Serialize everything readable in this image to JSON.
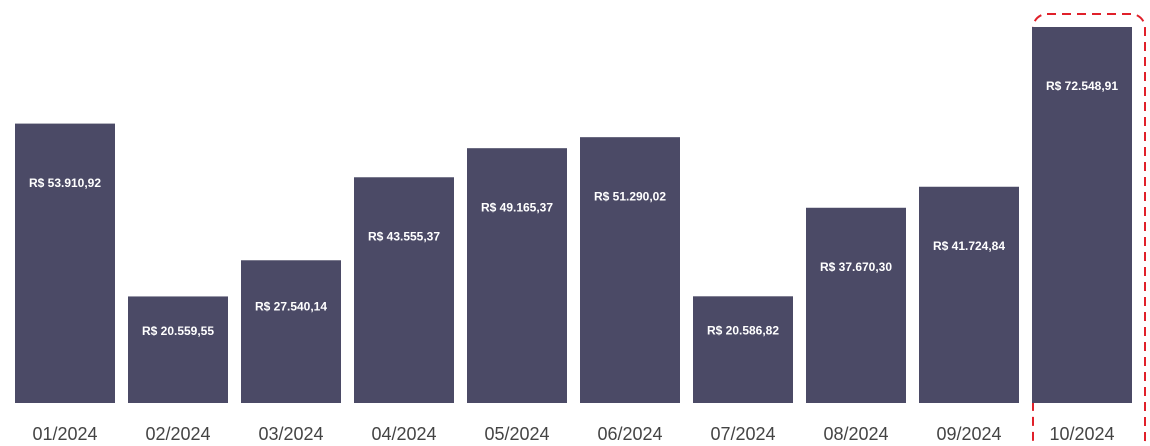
{
  "chart_data": {
    "type": "bar",
    "categories": [
      "01/2024",
      "02/2024",
      "03/2024",
      "04/2024",
      "05/2024",
      "06/2024",
      "07/2024",
      "08/2024",
      "09/2024",
      "10/2024"
    ],
    "values": [
      53910.92,
      20559.55,
      27540.14,
      43555.37,
      49165.37,
      51290.02,
      20586.82,
      37670.3,
      41724.84,
      72548.91
    ],
    "value_labels": [
      "R$ 53.910,92",
      "R$ 20.559,55",
      "R$ 27.540,14",
      "R$ 43.555,37",
      "R$ 49.165,37",
      "R$ 51.290,02",
      "R$ 20.586,82",
      "R$ 37.670,30",
      "R$ 41.724,84",
      "R$ 72.548,91"
    ],
    "color": "#4b4a66"
  }
}
